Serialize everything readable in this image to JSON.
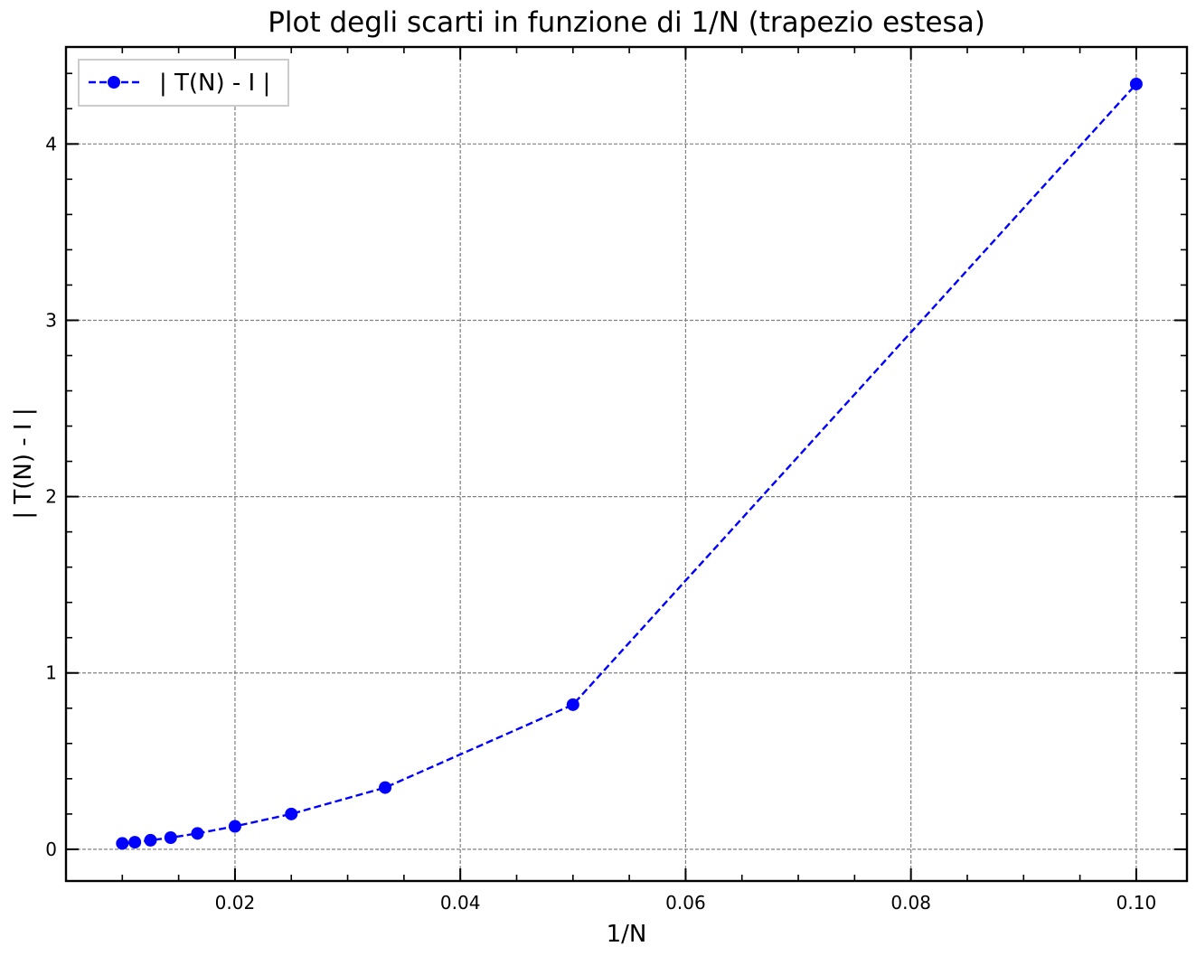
{
  "chart_data": {
    "type": "line",
    "title": "Plot degli scarti in funzione di 1/N (trapezio estesa)",
    "xlabel": "1/N",
    "ylabel": "| T(N) - I |",
    "xlim": [
      0.005,
      0.1045
    ],
    "ylim": [
      -0.18,
      4.55
    ],
    "xticks": [
      0.02,
      0.04,
      0.06,
      0.08,
      0.1
    ],
    "xtick_labels": [
      "0.02",
      "0.04",
      "0.06",
      "0.08",
      "0.10"
    ],
    "yticks": [
      0,
      1,
      2,
      3,
      4
    ],
    "ytick_labels": [
      "0",
      "1",
      "2",
      "3",
      "4"
    ],
    "grid": true,
    "grid_style": "dashed",
    "legend_position": "top-left",
    "series": [
      {
        "name": "| T(N) - I |",
        "color": "#0000ff",
        "line_style": "dashed",
        "marker": "circle",
        "x": [
          0.01,
          0.01111,
          0.0125,
          0.01429,
          0.01667,
          0.02,
          0.025,
          0.03333,
          0.05,
          0.1
        ],
        "y": [
          0.033,
          0.04,
          0.051,
          0.066,
          0.09,
          0.13,
          0.2,
          0.35,
          0.82,
          4.34
        ]
      }
    ]
  }
}
